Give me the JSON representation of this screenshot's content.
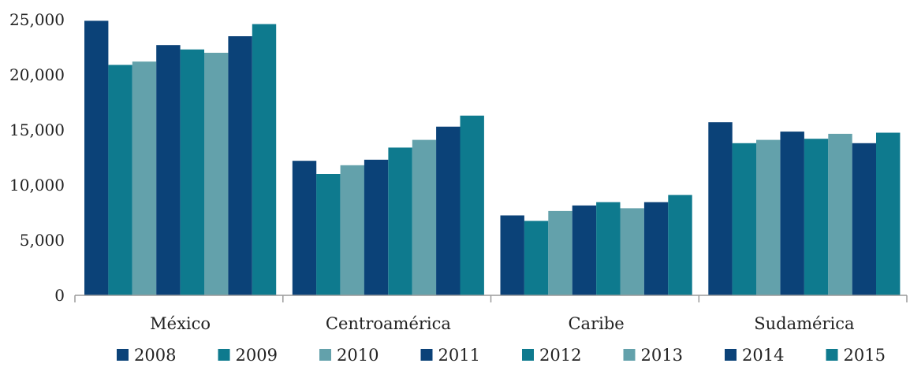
{
  "chart_data": {
    "type": "bar",
    "categories": [
      "México",
      "Centroamérica",
      "Caribe",
      "Sudamérica"
    ],
    "series": [
      {
        "name": "2008",
        "color": "#0b4278",
        "values": [
          24900,
          12200,
          7250,
          15700
        ]
      },
      {
        "name": "2009",
        "color": "#0e7a8e",
        "values": [
          20900,
          11000,
          6750,
          13800
        ]
      },
      {
        "name": "2010",
        "color": "#63a1ab",
        "values": [
          21200,
          11800,
          7650,
          14100
        ]
      },
      {
        "name": "2011",
        "color": "#0b4278",
        "values": [
          22700,
          12300,
          8150,
          14850
        ]
      },
      {
        "name": "2012",
        "color": "#0e7a8e",
        "values": [
          22300,
          13400,
          8450,
          14200
        ]
      },
      {
        "name": "2013",
        "color": "#63a1ab",
        "values": [
          22000,
          14100,
          7900,
          14650
        ]
      },
      {
        "name": "2014",
        "color": "#0b4278",
        "values": [
          23500,
          15300,
          8450,
          13800
        ]
      },
      {
        "name": "2015",
        "color": "#0e7a8e",
        "values": [
          24600,
          16300,
          9100,
          14750
        ]
      }
    ],
    "ylim": [
      0,
      25000
    ],
    "yticks": [
      0,
      5000,
      10000,
      15000,
      20000,
      25000
    ],
    "ytick_labels": [
      "0",
      "5,000",
      "10,000",
      "15,000",
      "20,000",
      "25,000"
    ],
    "grid": false,
    "legend_position": "bottom",
    "title": "",
    "xlabel": "",
    "ylabel": ""
  }
}
